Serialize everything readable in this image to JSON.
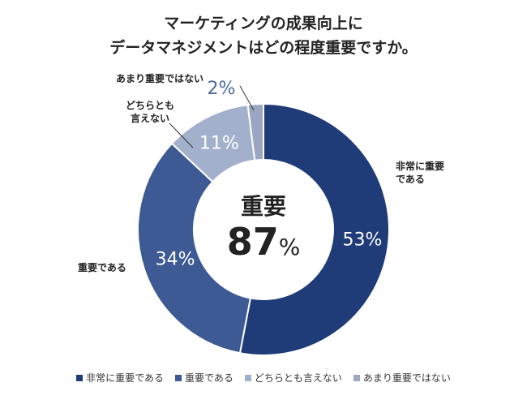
{
  "chart_data": {
    "type": "pie",
    "title_line1": "マーケティングの成果向上に",
    "title_line2": "データマネジメントはどの程度重要ですか。",
    "categories": [
      "非常に重要である",
      "重要である",
      "どちらとも言えない",
      "あまり重要ではない"
    ],
    "values": [
      53,
      34,
      11,
      2
    ],
    "value_labels": [
      "53%",
      "34%",
      "11%",
      "2%"
    ],
    "outer_labels": [
      [
        "非常に重要",
        "である"
      ],
      [
        "重要である"
      ],
      [
        "どちらとも",
        "言えない"
      ],
      [
        "あまり重要ではない"
      ]
    ],
    "colors": [
      "#1f3b78",
      "#3d5a94",
      "#a3b0cc",
      "#9aa6c2"
    ],
    "center_label": "重要",
    "center_value": "87",
    "center_unit": "%",
    "legend_position": "bottom"
  }
}
